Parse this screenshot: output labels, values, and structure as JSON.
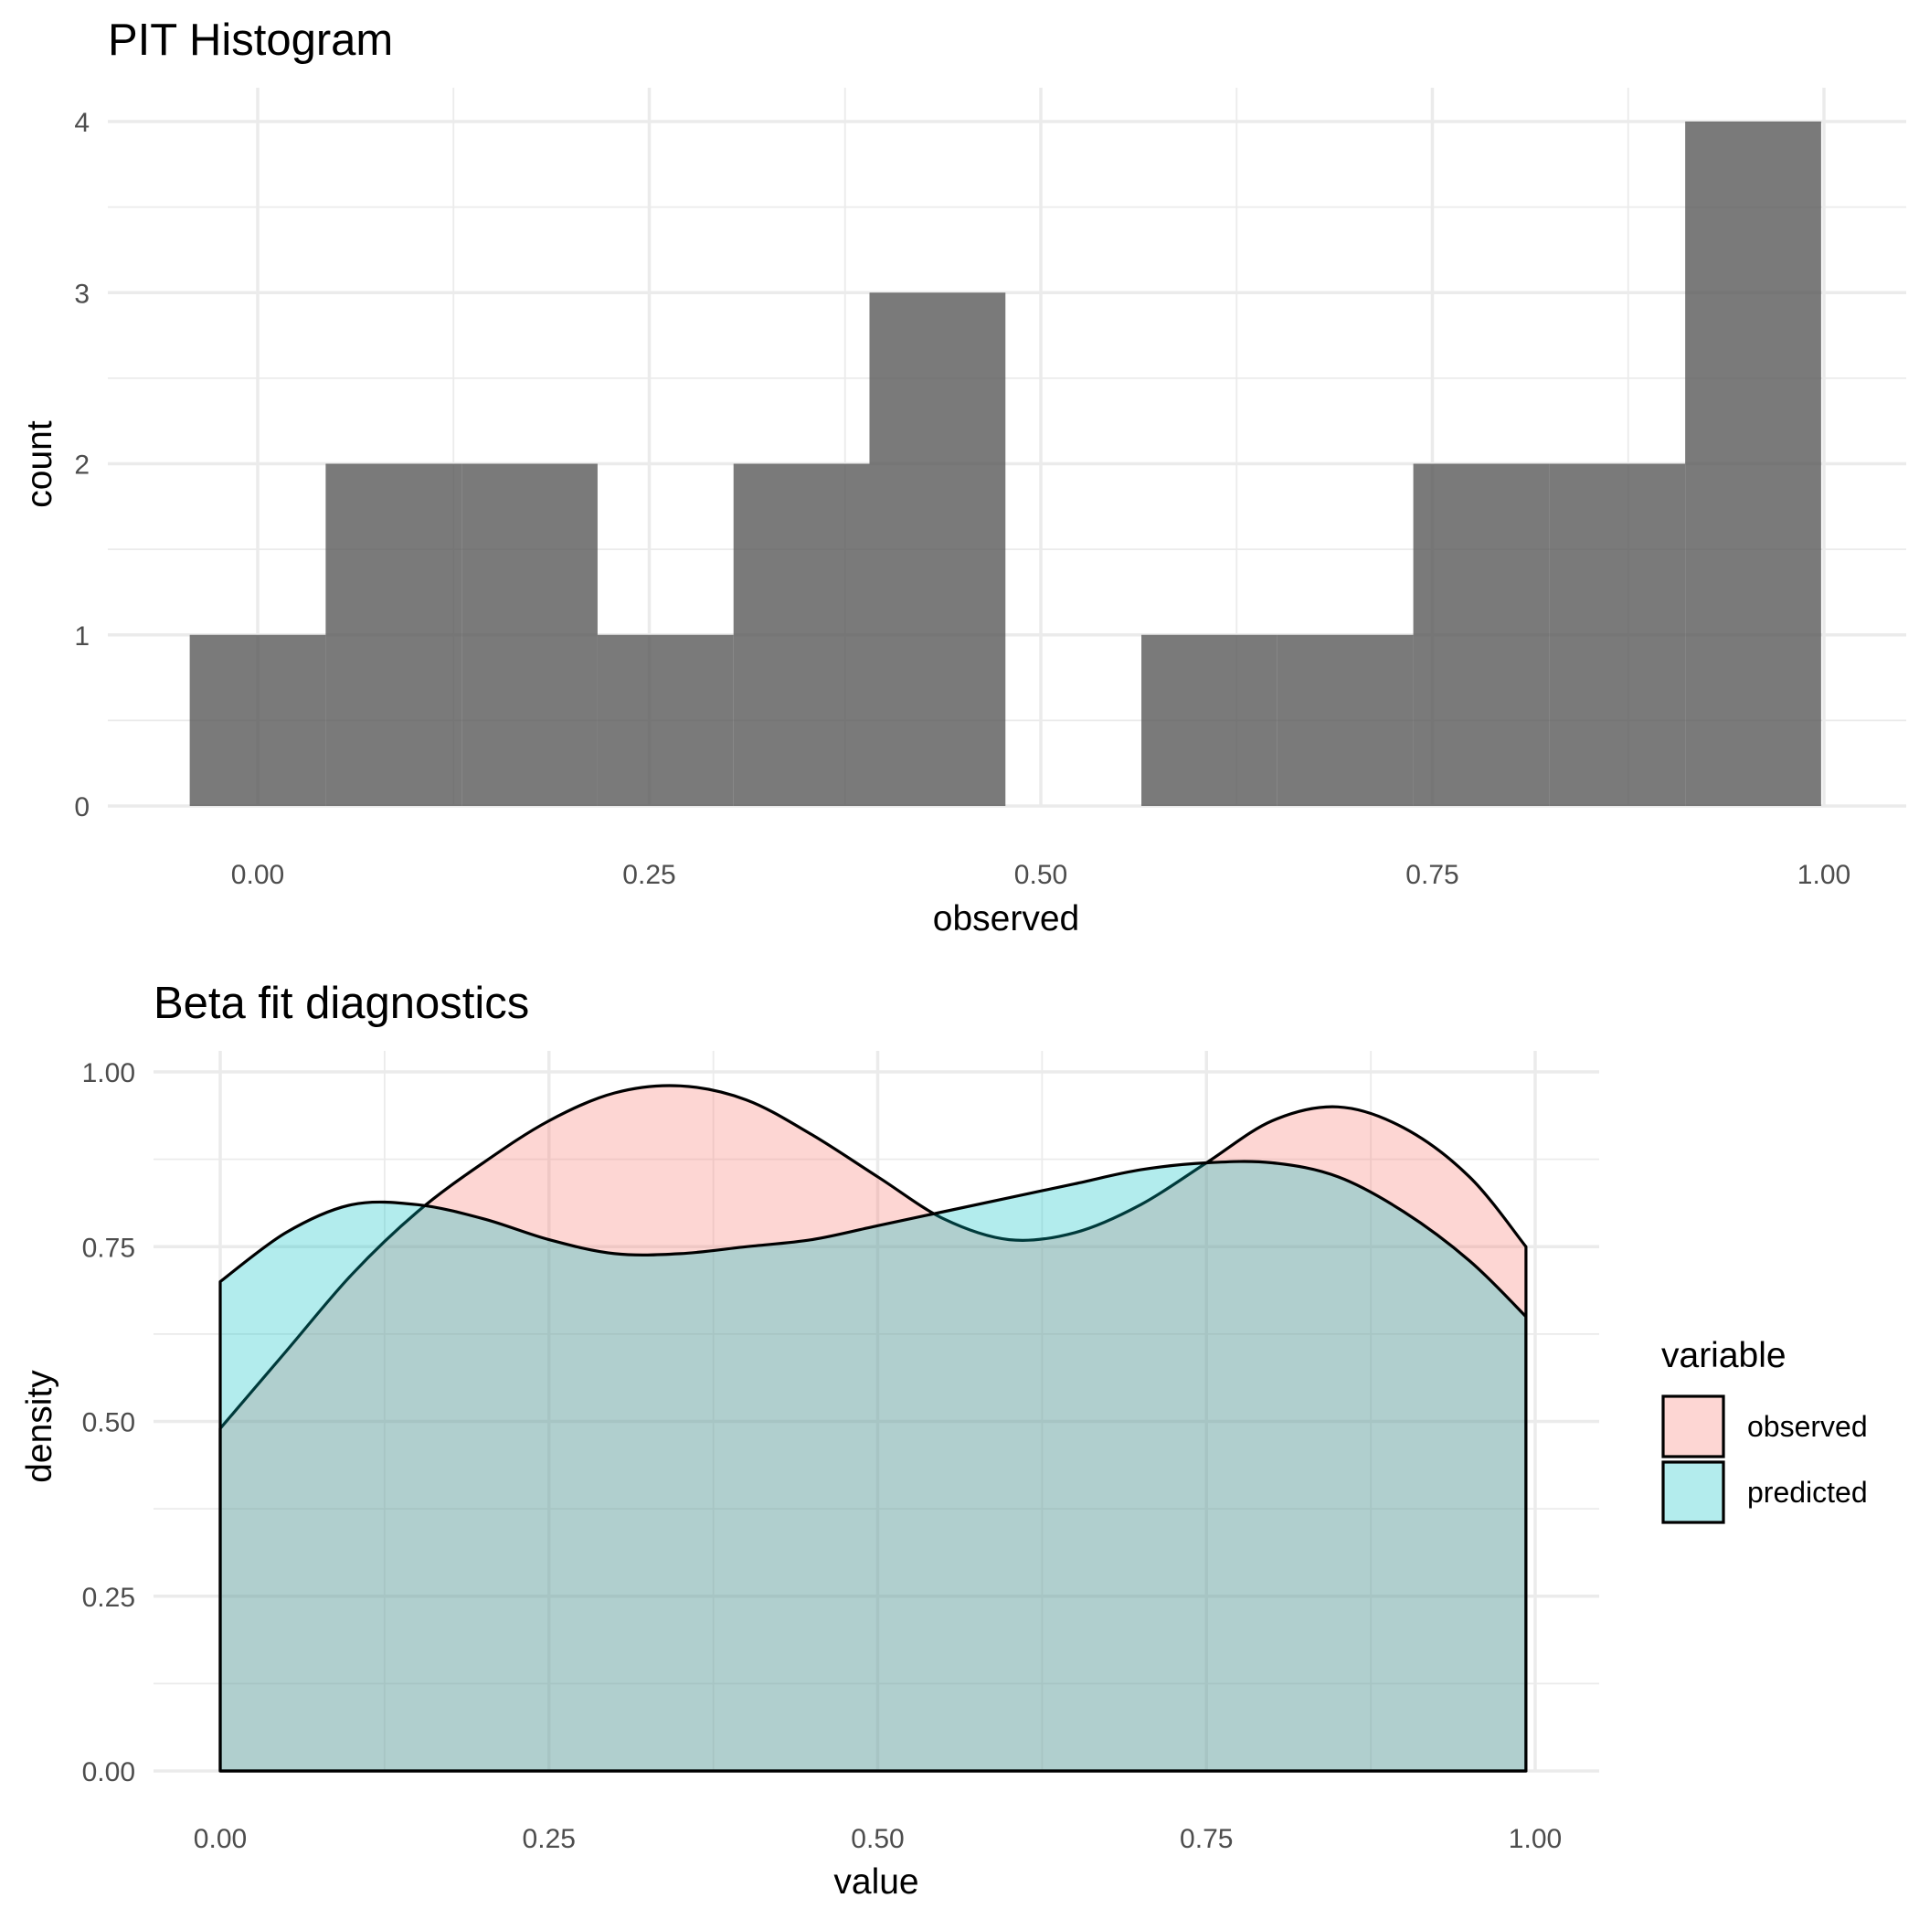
{
  "chart_data": [
    {
      "type": "bar",
      "title": "PIT Histogram",
      "xlabel": "observed",
      "ylabel": "count",
      "xlim": [
        -0.05,
        1.0
      ],
      "ylim": [
        0,
        4
      ],
      "x_ticks": [
        0,
        0.25,
        0.5,
        0.75,
        1
      ],
      "x_tick_labels": [
        "0.00",
        "0.25",
        "0.50",
        "0.75",
        "1.00"
      ],
      "y_ticks": [
        0,
        1,
        2,
        3,
        4
      ],
      "y_tick_labels": [
        "0",
        "1",
        "2",
        "3",
        "4"
      ],
      "grid": true,
      "bar_color": "#595959",
      "bin_width": 0.0868,
      "bins": [
        {
          "x0": -0.0434,
          "x1": 0.0434,
          "count": 1
        },
        {
          "x0": 0.0434,
          "x1": 0.1302,
          "count": 2
        },
        {
          "x0": 0.1302,
          "x1": 0.217,
          "count": 2
        },
        {
          "x0": 0.217,
          "x1": 0.3038,
          "count": 1
        },
        {
          "x0": 0.3038,
          "x1": 0.3906,
          "count": 2
        },
        {
          "x0": 0.3906,
          "x1": 0.4774,
          "count": 3
        },
        {
          "x0": 0.4774,
          "x1": 0.5642,
          "count": 0
        },
        {
          "x0": 0.5642,
          "x1": 0.651,
          "count": 1
        },
        {
          "x0": 0.651,
          "x1": 0.7378,
          "count": 1
        },
        {
          "x0": 0.7378,
          "x1": 0.8246,
          "count": 2
        },
        {
          "x0": 0.8246,
          "x1": 0.9114,
          "count": 2
        },
        {
          "x0": 0.9114,
          "x1": 0.9982,
          "count": 4
        }
      ]
    },
    {
      "type": "area",
      "title": "Beta fit diagnostics",
      "xlabel": "value",
      "ylabel": "density",
      "xlim": [
        0,
        1
      ],
      "ylim": [
        0,
        1
      ],
      "x_ticks": [
        0,
        0.25,
        0.5,
        0.75,
        1
      ],
      "x_tick_labels": [
        "0.00",
        "0.25",
        "0.50",
        "0.75",
        "1.00"
      ],
      "y_ticks": [
        0,
        0.25,
        0.5,
        0.75,
        1
      ],
      "y_tick_labels": [
        "0.00",
        "0.25",
        "0.50",
        "0.75",
        "1.00"
      ],
      "grid": true,
      "legend": {
        "title": "variable",
        "position": "right"
      },
      "series": [
        {
          "name": "observed",
          "color": "#f8766d",
          "x": [
            0.0,
            0.05,
            0.1,
            0.15,
            0.2,
            0.25,
            0.3,
            0.35,
            0.4,
            0.45,
            0.5,
            0.55,
            0.6,
            0.65,
            0.7,
            0.75,
            0.8,
            0.85,
            0.9,
            0.95,
            0.993
          ],
          "values": [
            0.49,
            0.6,
            0.71,
            0.8,
            0.87,
            0.93,
            0.97,
            0.98,
            0.96,
            0.91,
            0.85,
            0.79,
            0.76,
            0.77,
            0.81,
            0.87,
            0.93,
            0.95,
            0.92,
            0.85,
            0.75
          ]
        },
        {
          "name": "predicted",
          "color": "#00bfc4",
          "x": [
            0.0,
            0.05,
            0.1,
            0.15,
            0.2,
            0.25,
            0.3,
            0.35,
            0.4,
            0.45,
            0.5,
            0.55,
            0.6,
            0.65,
            0.7,
            0.75,
            0.8,
            0.85,
            0.9,
            0.95,
            0.993
          ],
          "values": [
            0.7,
            0.77,
            0.81,
            0.81,
            0.79,
            0.76,
            0.74,
            0.74,
            0.75,
            0.76,
            0.78,
            0.8,
            0.82,
            0.84,
            0.86,
            0.87,
            0.87,
            0.85,
            0.8,
            0.73,
            0.65
          ]
        }
      ]
    }
  ]
}
